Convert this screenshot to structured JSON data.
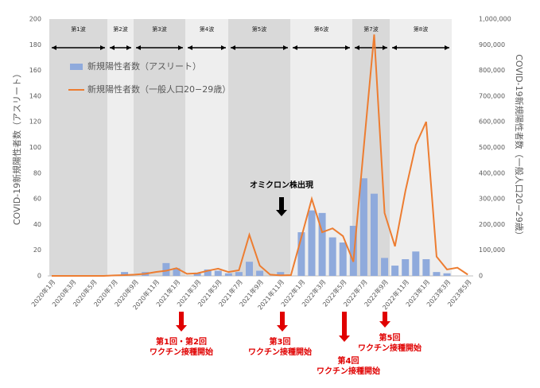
{
  "chart_data": {
    "type": "bar_line",
    "y_label": "COVID-19新規陽性者数（アスリート）",
    "y2_label": "COVID-19新規陽性者数（一般人口20−29歳）",
    "categories": [
      "2020年1月",
      null,
      "2020年3月",
      null,
      "2020年5月",
      null,
      "2020年7月",
      null,
      "2020年9月",
      null,
      "2020年11月",
      null,
      "2021年1月",
      null,
      "2021年3月",
      null,
      "2021年5月",
      null,
      "2021年7月",
      null,
      "2021年9月",
      null,
      "2021年11月",
      null,
      "2022年1月",
      null,
      "2022年3月",
      null,
      "2022年5月",
      null,
      "2022年7月",
      null,
      "2022年9月",
      null,
      "2022年11月",
      null,
      "2023年1月",
      null,
      "2023年3月",
      null,
      "2023年5月"
    ],
    "series": [
      {
        "name": "新規陽性者数（アスリート）",
        "type": "bar",
        "color": "#8faadc",
        "values": [
          0,
          0,
          0,
          0,
          0,
          0,
          0,
          3,
          0,
          3,
          0,
          10,
          6,
          0,
          2,
          5,
          4,
          2,
          3,
          11,
          4,
          0,
          3,
          0,
          34,
          51,
          49,
          30,
          26,
          39,
          76,
          64,
          14,
          8,
          13,
          19,
          13,
          3,
          2,
          0,
          0
        ]
      },
      {
        "name": "新規陽性者数（一般人口20−29歳）",
        "type": "line",
        "axis": "y2",
        "color": "#ed7d31",
        "values": [
          0,
          0,
          0,
          0,
          0,
          0,
          2000,
          3000,
          5000,
          8000,
          15000,
          20000,
          30000,
          8000,
          10000,
          20000,
          28000,
          15000,
          22000,
          160000,
          40000,
          5000,
          2000,
          3000,
          150000,
          300000,
          170000,
          185000,
          155000,
          55000,
          500000,
          940000,
          245000,
          115000,
          330000,
          510000,
          600000,
          75000,
          25000,
          32000,
          5000
        ]
      }
    ],
    "ylim": [
      0,
      200
    ],
    "yticks": [
      0,
      20,
      40,
      60,
      80,
      100,
      120,
      140,
      160,
      180,
      200
    ],
    "y2lim": [
      0,
      1000000
    ],
    "y2ticks": [
      0,
      {
        "value": 100000,
        "label": "100,000"
      },
      {
        "value": 200000,
        "label": "200,000"
      },
      {
        "value": 300000,
        "label": "300,000"
      },
      {
        "value": 400000,
        "label": "400,000"
      },
      {
        "value": 500000,
        "label": "500,000"
      },
      {
        "value": 600000,
        "label": "600,000"
      },
      {
        "value": 700000,
        "label": "700,000"
      },
      {
        "value": 800000,
        "label": "800,000"
      },
      {
        "value": 900000,
        "label": "900,000"
      },
      {
        "value": 1000000,
        "label": "1,000,000"
      }
    ],
    "grid": false,
    "waves": [
      "第1波",
      "第2波",
      "第3波",
      "第4波",
      "第5波",
      "第6波",
      "第7波",
      "第8波"
    ],
    "annotations": [
      [
        "オミクロン株出現"
      ],
      [
        "第1回・第2回",
        "ワクチン接種開始"
      ],
      [
        "第3回",
        "ワクチン接種開始"
      ],
      [
        "第4回",
        "ワクチン接種開始"
      ],
      [
        "第5回",
        "ワクチン接種開始"
      ]
    ]
  }
}
